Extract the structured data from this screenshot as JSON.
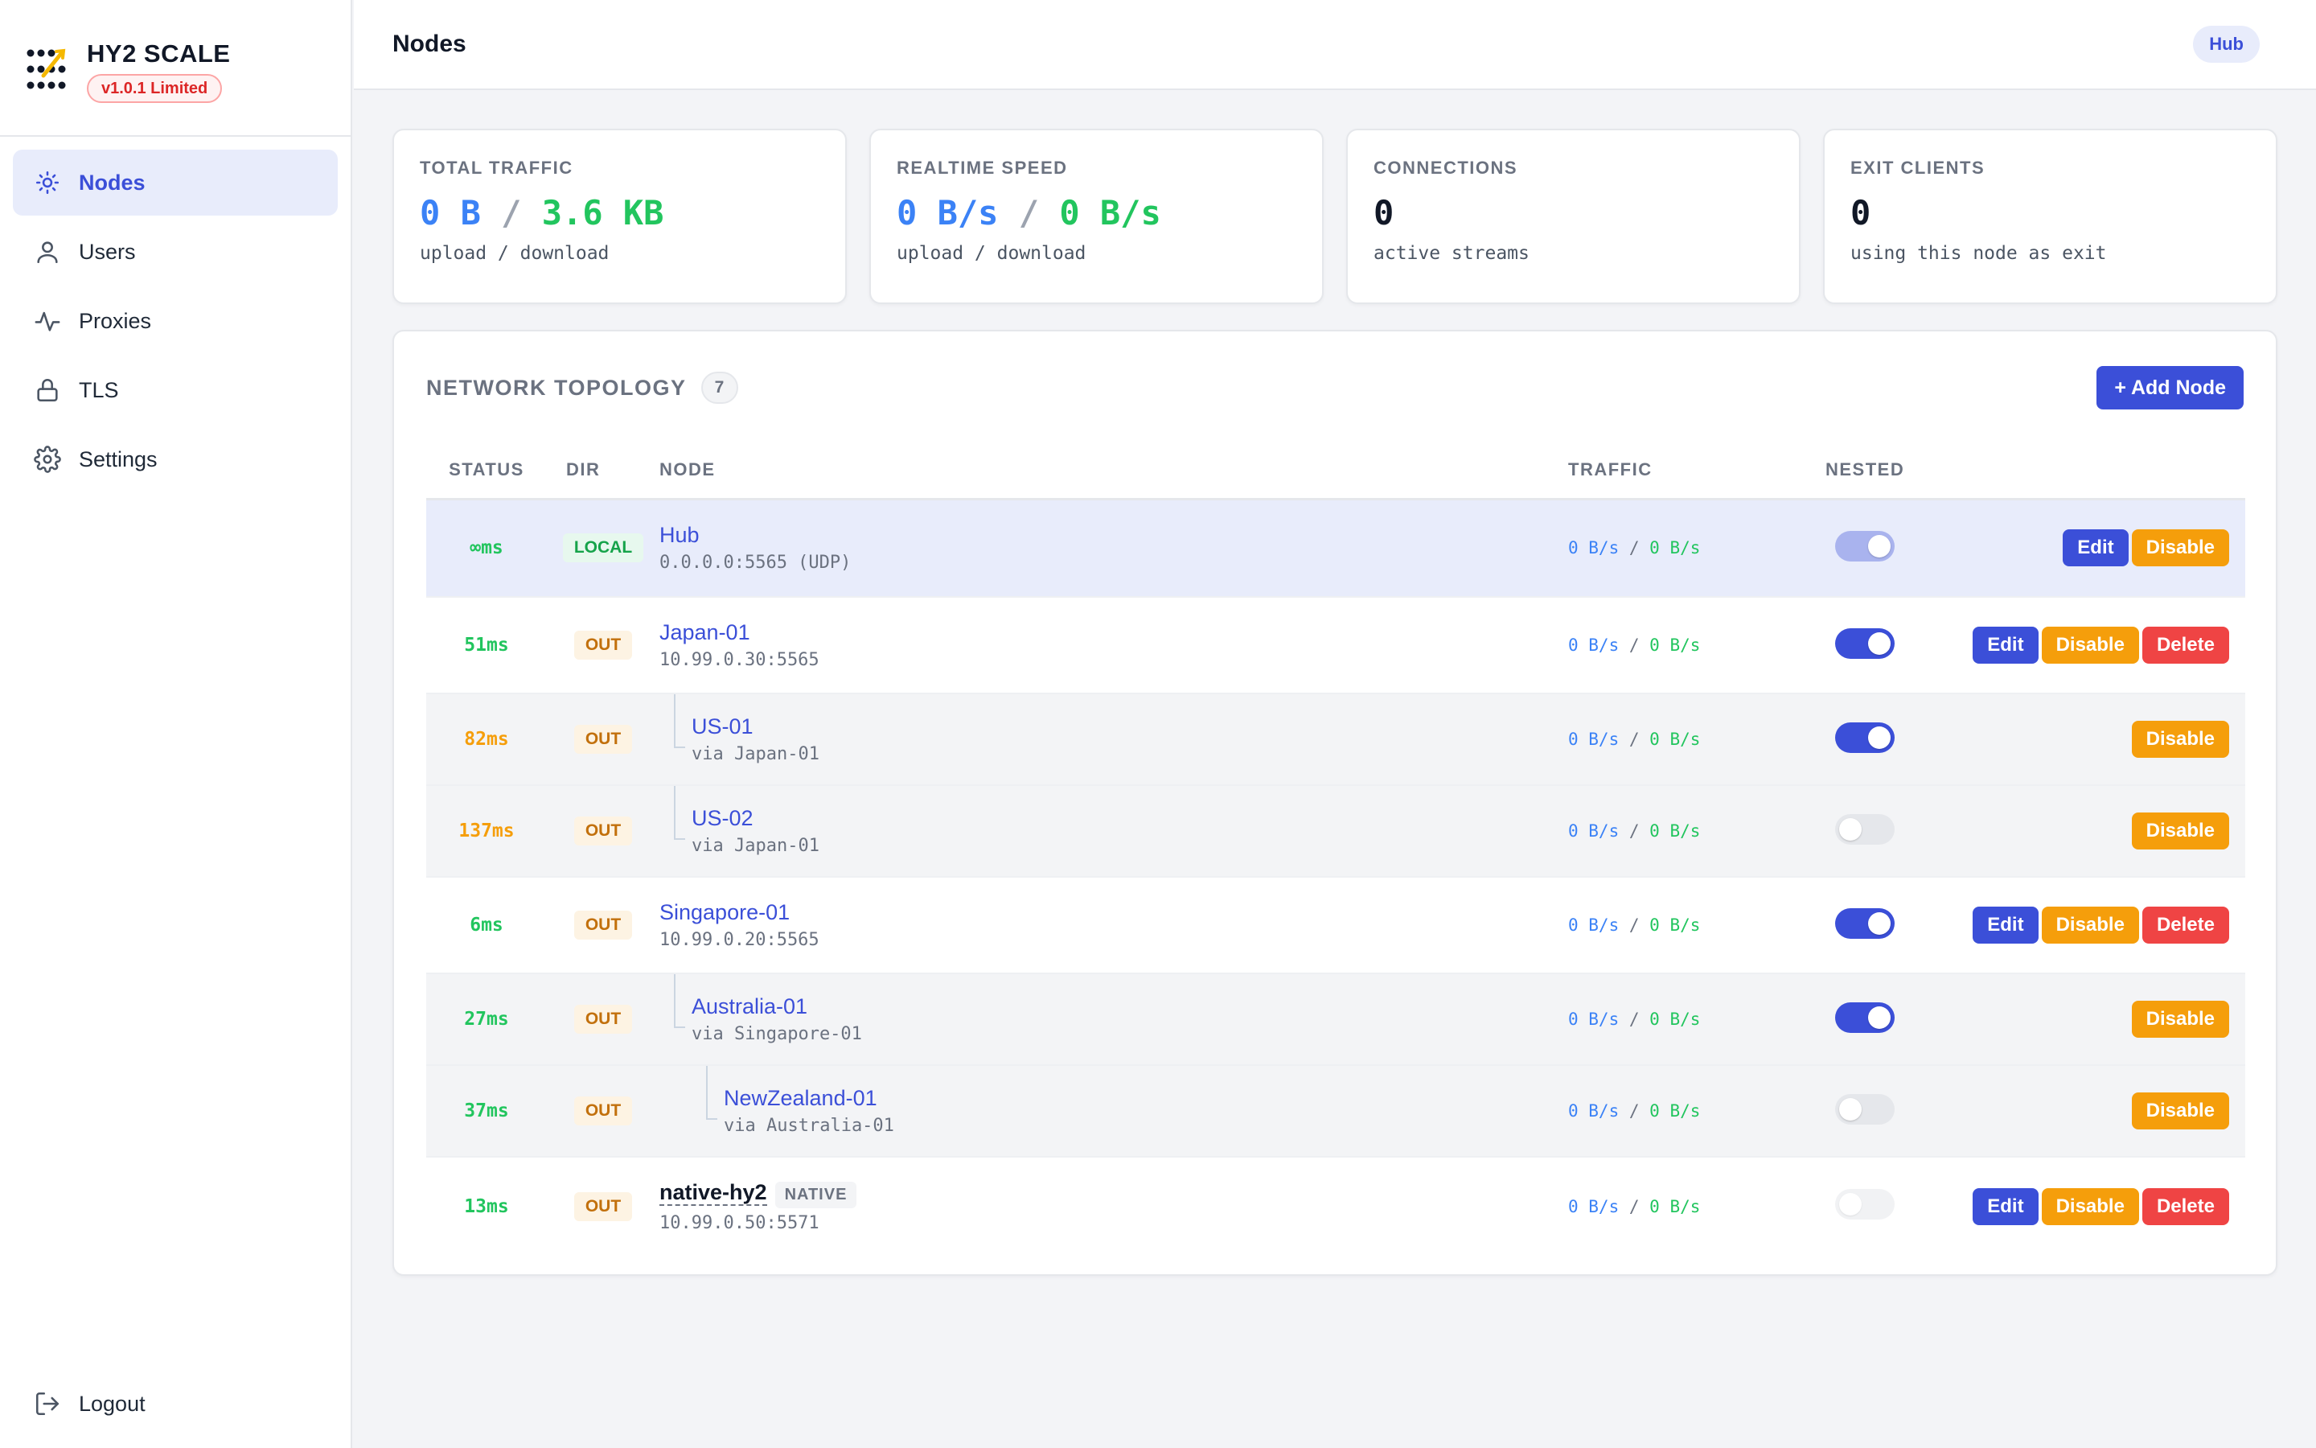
{
  "brand": {
    "title": "HY2 SCALE",
    "version": "v1.0.1 Limited"
  },
  "sidebar": {
    "items": [
      {
        "label": "Nodes",
        "icon": "sun-icon"
      },
      {
        "label": "Users",
        "icon": "user-icon"
      },
      {
        "label": "Proxies",
        "icon": "activity-icon"
      },
      {
        "label": "TLS",
        "icon": "lock-icon"
      },
      {
        "label": "Settings",
        "icon": "gear-icon"
      }
    ],
    "logout": "Logout"
  },
  "header": {
    "title": "Nodes",
    "badge": "Hub"
  },
  "stats": [
    {
      "label": "TOTAL TRAFFIC",
      "up": "0 B",
      "sep": "/",
      "down": "3.6 KB",
      "sub": "upload / download"
    },
    {
      "label": "REALTIME SPEED",
      "up": "0 B/s",
      "sep": "/",
      "down": "0 B/s",
      "sub": "upload / download"
    },
    {
      "label": "CONNECTIONS",
      "value": "0",
      "sub": "active streams"
    },
    {
      "label": "EXIT CLIENTS",
      "value": "0",
      "sub": "using this node as exit"
    }
  ],
  "topology": {
    "title": "NETWORK TOPOLOGY",
    "count": "7",
    "add_button": "+ Add Node",
    "columns": {
      "status": "STATUS",
      "dir": "DIR",
      "node": "NODE",
      "traffic": "TRAFFIC",
      "nested": "NESTED"
    },
    "actions": {
      "edit": "Edit",
      "disable": "Disable",
      "delete": "Delete"
    },
    "rows": [
      {
        "latency": "∞ms",
        "dir": "LOCAL",
        "name": "Hub",
        "sub": "0.0.0.0:5565 (UDP)",
        "traffic": "0 B/s / 0 B/s"
      },
      {
        "latency": "51ms",
        "dir": "OUT",
        "name": "Japan-01",
        "sub": "10.99.0.30:5565",
        "traffic": "0 B/s / 0 B/s"
      },
      {
        "latency": "82ms",
        "dir": "OUT",
        "name": "US-01",
        "sub": "via Japan-01",
        "traffic": "0 B/s / 0 B/s"
      },
      {
        "latency": "137ms",
        "dir": "OUT",
        "name": "US-02",
        "sub": "via Japan-01",
        "traffic": "0 B/s / 0 B/s"
      },
      {
        "latency": "6ms",
        "dir": "OUT",
        "name": "Singapore-01",
        "sub": "10.99.0.20:5565",
        "traffic": "0 B/s / 0 B/s"
      },
      {
        "latency": "27ms",
        "dir": "OUT",
        "name": "Australia-01",
        "sub": "via Singapore-01",
        "traffic": "0 B/s / 0 B/s"
      },
      {
        "latency": "37ms",
        "dir": "OUT",
        "name": "NewZealand-01",
        "sub": "via Australia-01",
        "traffic": "0 B/s / 0 B/s"
      },
      {
        "latency": "13ms",
        "dir": "OUT",
        "name": "native-hy2",
        "badge": "NATIVE",
        "sub": "10.99.0.50:5571",
        "traffic": "0 B/s / 0 B/s"
      }
    ]
  },
  "colors": {
    "accent": "#3b4fd8",
    "green": "#22c55e",
    "orange": "#f59e0b",
    "red": "#ef4444"
  }
}
